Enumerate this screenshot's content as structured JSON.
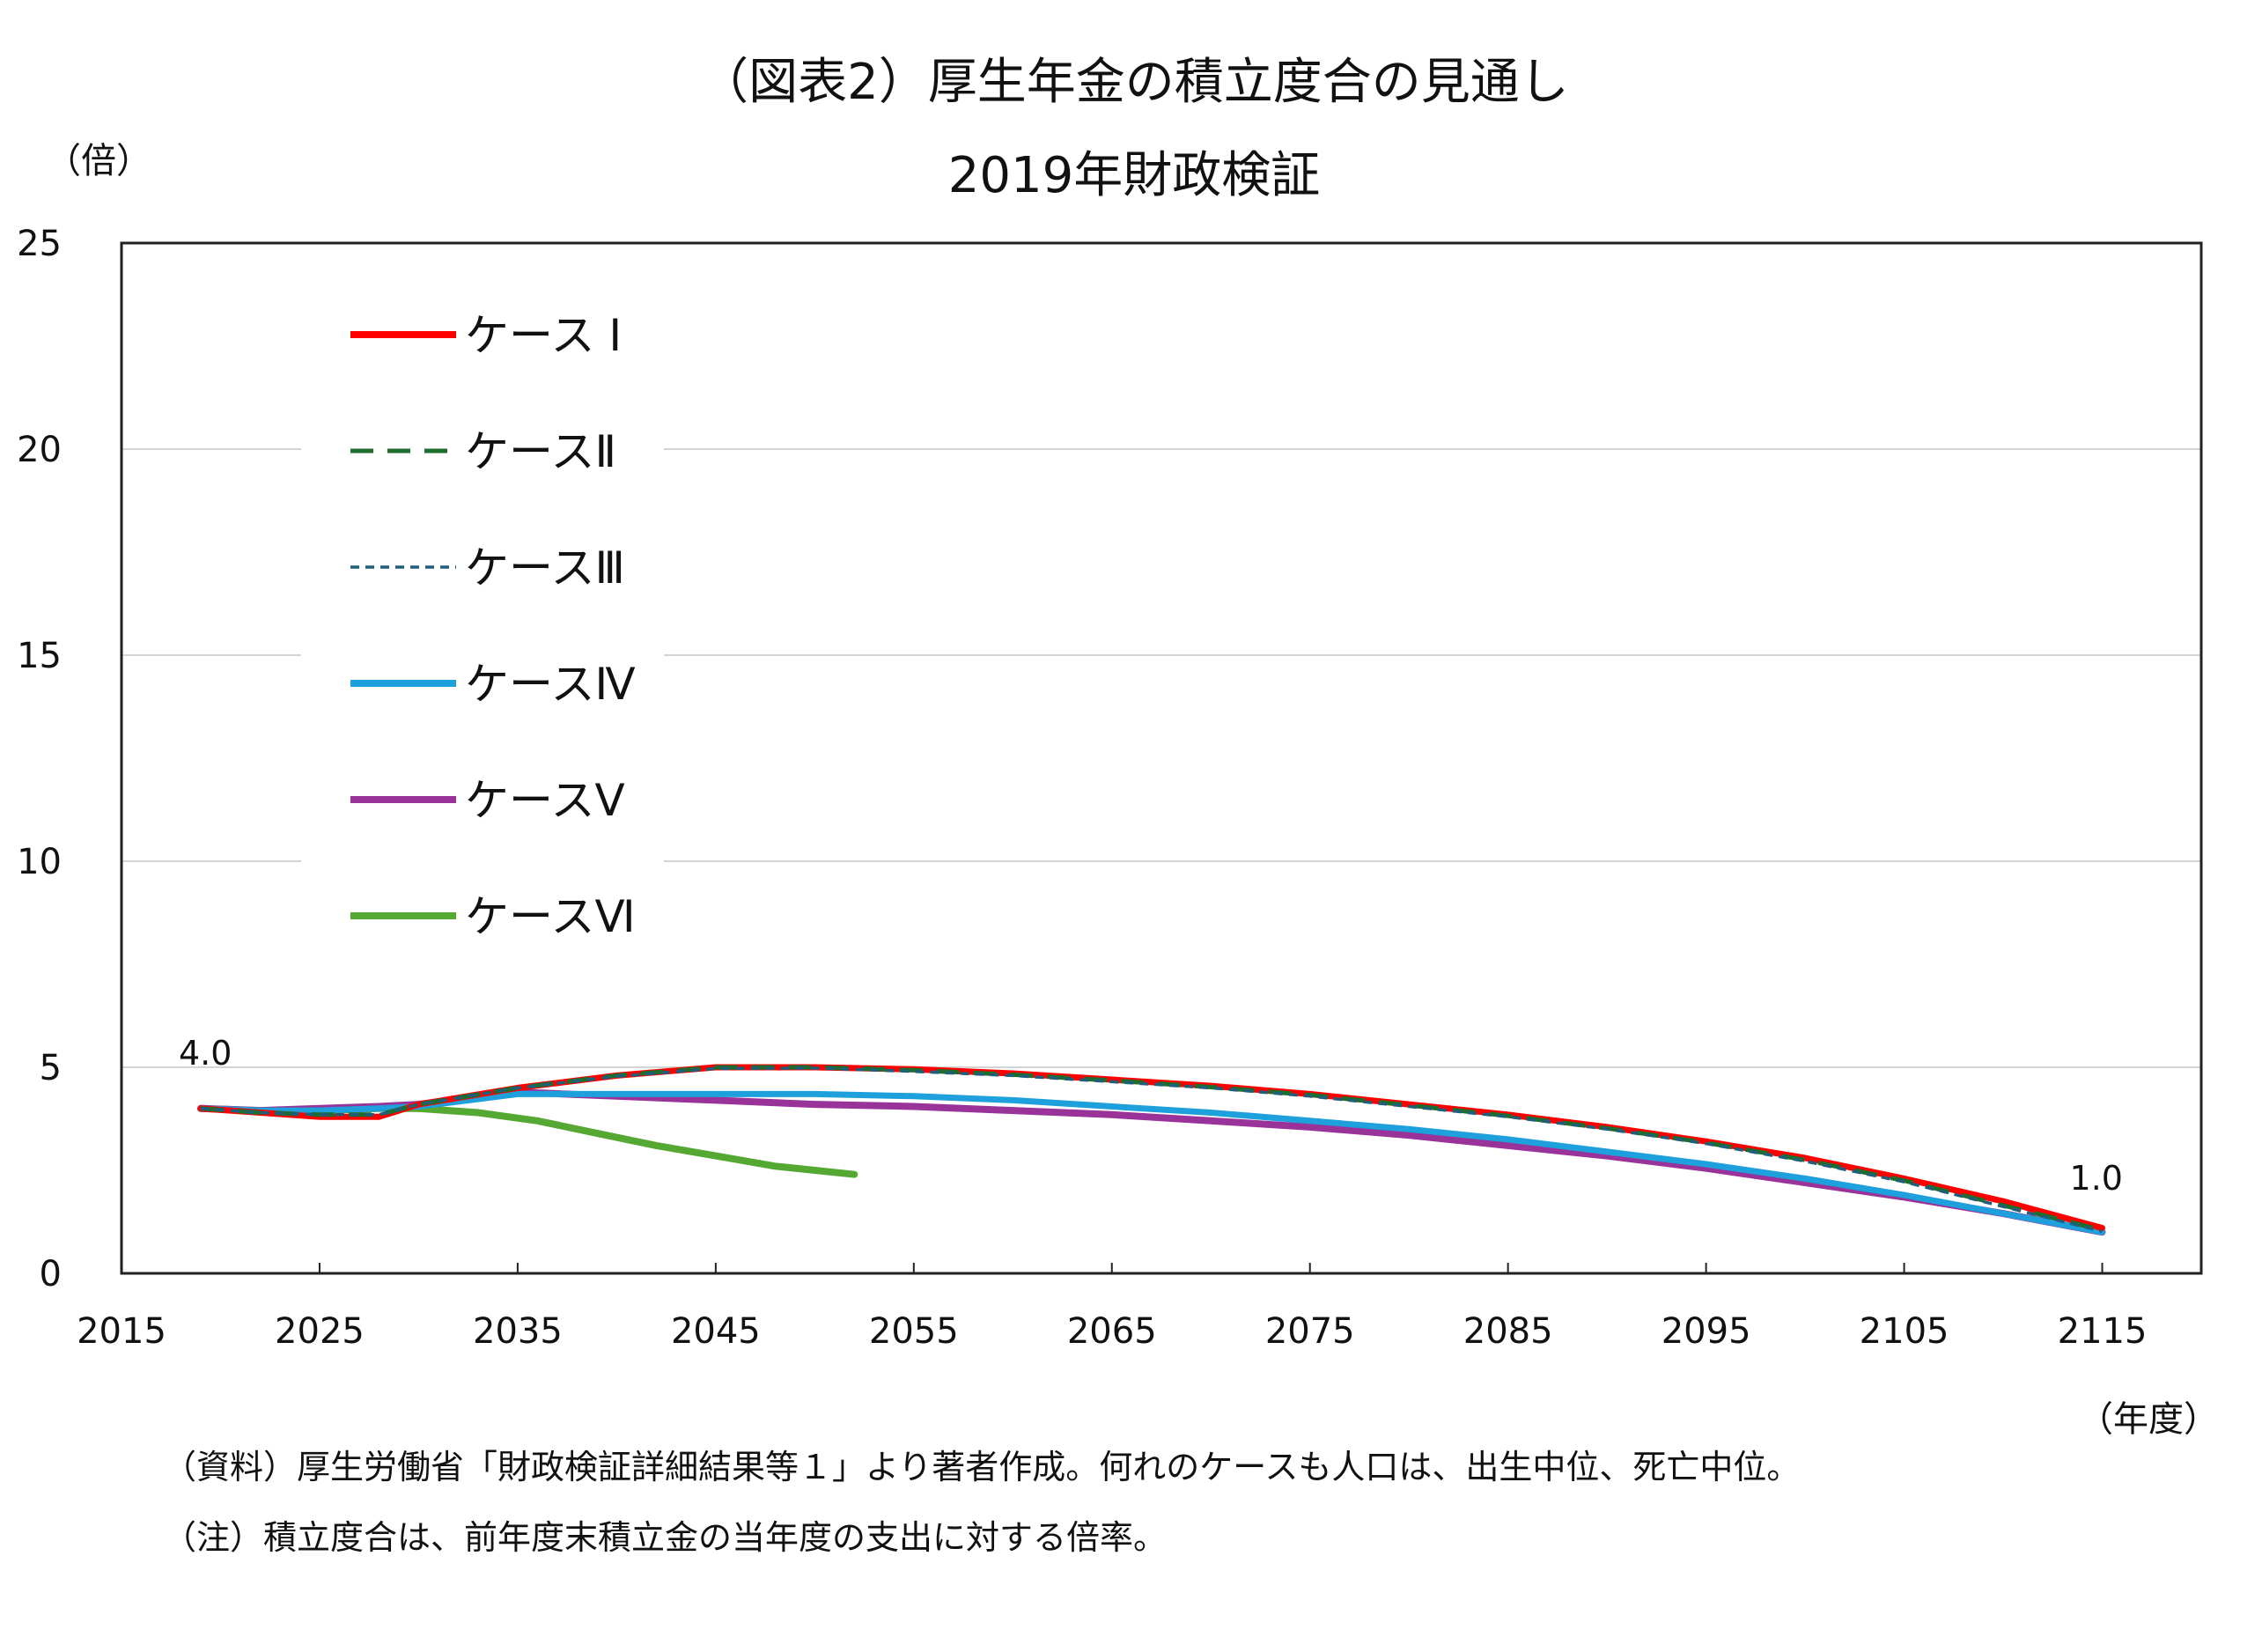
{
  "chart_data": {
    "type": "line",
    "title": "（図表2）厚生年金の積立度合の見通し",
    "subtitle": "2019年財政検証",
    "ylabel": "（倍）",
    "xlabel": "（年度）",
    "xlim": [
      2015,
      2120
    ],
    "ylim": [
      0,
      25
    ],
    "xticks": [
      2015,
      2025,
      2035,
      2045,
      2055,
      2065,
      2075,
      2085,
      2095,
      2105,
      2115
    ],
    "yticks": [
      0,
      5,
      10,
      15,
      20,
      25
    ],
    "grid": "horizontal",
    "legend_position": "top-left",
    "series": [
      {
        "name": "ケース Ⅰ",
        "color": "#ff0000",
        "dash": "solid",
        "x": [
          2019,
          2022,
          2025,
          2028,
          2030,
          2035,
          2040,
          2045,
          2050,
          2055,
          2060,
          2065,
          2070,
          2075,
          2080,
          2085,
          2090,
          2095,
          2100,
          2105,
          2110,
          2115
        ],
        "y": [
          4.0,
          3.9,
          3.8,
          3.8,
          4.1,
          4.5,
          4.8,
          5.0,
          5.0,
          4.95,
          4.85,
          4.7,
          4.55,
          4.35,
          4.1,
          3.85,
          3.55,
          3.2,
          2.8,
          2.3,
          1.75,
          1.1
        ]
      },
      {
        "name": "ケースⅡ",
        "color": "#1d6e2c",
        "dash": "long",
        "x": [
          2019,
          2022,
          2025,
          2028,
          2030,
          2035,
          2040,
          2045,
          2050,
          2055,
          2060,
          2065,
          2070,
          2075,
          2080,
          2085,
          2090,
          2095,
          2100,
          2105,
          2110,
          2115
        ],
        "y": [
          4.0,
          3.9,
          3.85,
          3.85,
          4.1,
          4.5,
          4.8,
          5.0,
          5.0,
          4.93,
          4.82,
          4.68,
          4.52,
          4.33,
          4.08,
          3.82,
          3.52,
          3.17,
          2.75,
          2.25,
          1.65,
          1.05
        ]
      },
      {
        "name": "ケースⅢ",
        "color": "#1f5f7a",
        "dash": "short",
        "x": [
          2019,
          2022,
          2025,
          2028,
          2030,
          2035,
          2040,
          2045,
          2050,
          2055,
          2060,
          2065,
          2070,
          2075,
          2080,
          2085,
          2090,
          2095,
          2100,
          2105,
          2110,
          2115
        ],
        "y": [
          4.0,
          3.9,
          3.85,
          3.85,
          4.1,
          4.5,
          4.78,
          4.97,
          4.98,
          4.9,
          4.8,
          4.65,
          4.5,
          4.3,
          4.05,
          3.8,
          3.5,
          3.15,
          2.72,
          2.22,
          1.62,
          1.02
        ]
      },
      {
        "name": "ケースⅣ",
        "color": "#1ea0dc",
        "dash": "solid",
        "x": [
          2019,
          2022,
          2025,
          2028,
          2030,
          2035,
          2040,
          2045,
          2050,
          2055,
          2060,
          2065,
          2070,
          2075,
          2080,
          2085,
          2090,
          2095,
          2100,
          2105,
          2110,
          2115
        ],
        "y": [
          4.0,
          3.95,
          3.95,
          4.0,
          4.05,
          4.35,
          4.35,
          4.35,
          4.35,
          4.3,
          4.2,
          4.05,
          3.9,
          3.7,
          3.5,
          3.25,
          2.95,
          2.65,
          2.3,
          1.9,
          1.45,
          1.0
        ]
      },
      {
        "name": "ケースⅤ",
        "color": "#993399",
        "dash": "solid",
        "x": [
          2019,
          2022,
          2025,
          2028,
          2030,
          2035,
          2040,
          2045,
          2050,
          2055,
          2060,
          2065,
          2070,
          2075,
          2080,
          2085,
          2090,
          2095,
          2100,
          2105,
          2110,
          2115
        ],
        "y": [
          4.0,
          3.95,
          4.0,
          4.05,
          4.1,
          4.4,
          4.3,
          4.2,
          4.1,
          4.05,
          3.95,
          3.85,
          3.7,
          3.55,
          3.35,
          3.1,
          2.85,
          2.55,
          2.2,
          1.85,
          1.45,
          1.0
        ]
      },
      {
        "name": "ケースⅥ",
        "color": "#55a832",
        "dash": "solid",
        "x": [
          2019,
          2022,
          2025,
          2028,
          2030,
          2033,
          2036,
          2039,
          2042,
          2045,
          2048,
          2052
        ],
        "y": [
          4.0,
          3.95,
          3.95,
          4.0,
          4.0,
          3.9,
          3.7,
          3.4,
          3.1,
          2.85,
          2.6,
          2.4
        ]
      }
    ],
    "annotations": [
      {
        "text": "4.0",
        "x": 2019,
        "y": 4.0
      },
      {
        "text": "1.0",
        "x": 2115,
        "y": 1.0
      }
    ]
  },
  "notes": [
    "（資料）厚生労働省「財政検証詳細結果等１」より著者作成。何れのケースも人口は、出生中位、死亡中位。",
    "（注）積立度合は、前年度末積立金の当年度の支出に対する倍率。"
  ]
}
